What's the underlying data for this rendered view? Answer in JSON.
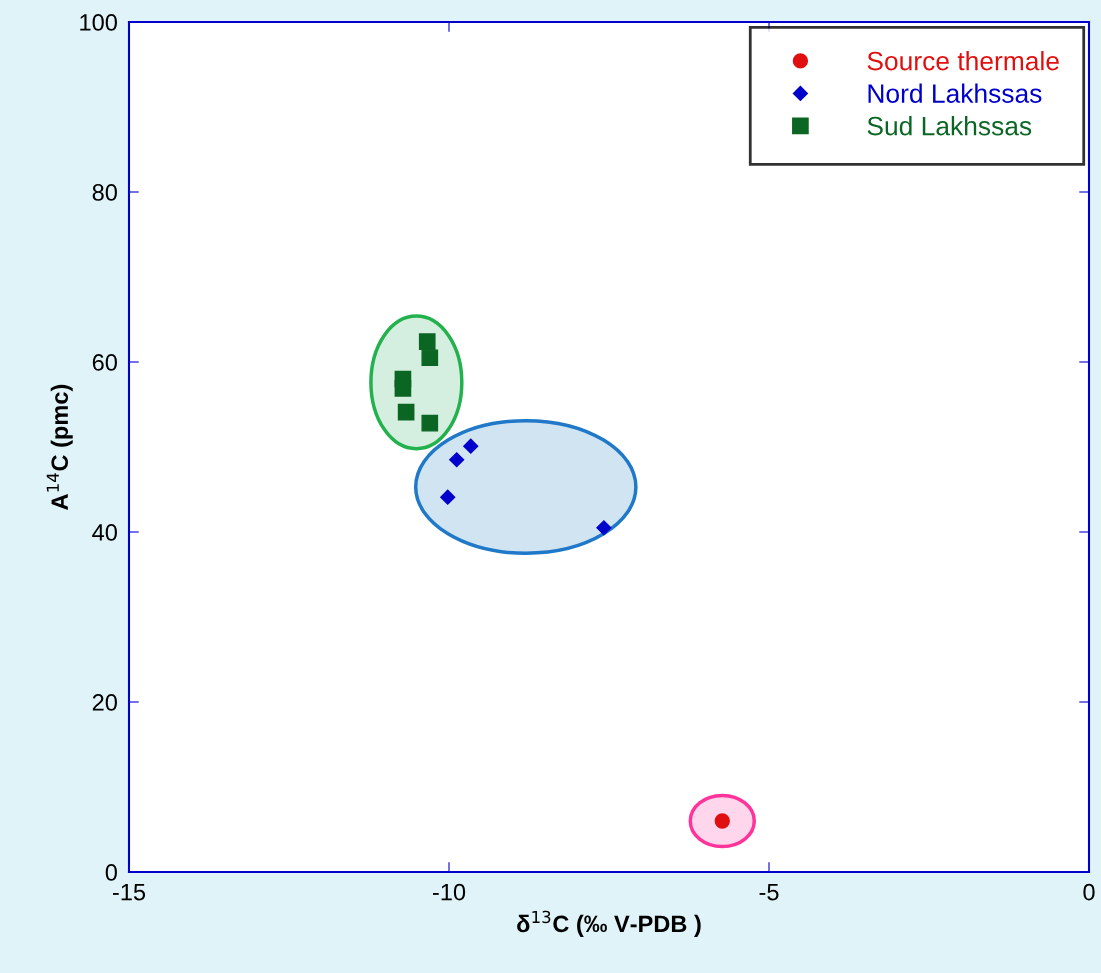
{
  "chart_data": {
    "type": "scatter",
    "xlabel": "δ$^{13}$C (‰ V-PDB )",
    "ylabel": "A$^{14}$C (pmc)",
    "xlim": [
      -15,
      0
    ],
    "xticks": [
      -15,
      -10,
      -5,
      0
    ],
    "ylim": [
      0,
      100
    ],
    "yticks": [
      0,
      20,
      40,
      60,
      80,
      100
    ],
    "grid": false,
    "legend": "top right",
    "series": [
      {
        "name": "Source thermale",
        "color": "#e01010",
        "marker": "circle",
        "x": [
          -5.73
        ],
        "values": [
          6.0
        ]
      },
      {
        "name": "Nord Lakhssas",
        "color": "#0000cc",
        "marker": "diamond",
        "x": [
          -10.02,
          -9.88,
          -9.66,
          -7.58
        ],
        "values": [
          44.1,
          48.5,
          50.1,
          40.5
        ]
      },
      {
        "name": "Sud Lakhssas",
        "color": "#0b6623",
        "marker": "square",
        "x": [
          -10.34,
          -10.3,
          -10.72,
          -10.72,
          -10.67,
          -10.3
        ],
        "values": [
          62.4,
          60.5,
          58.0,
          56.9,
          54.1,
          52.8
        ]
      }
    ]
  }
}
